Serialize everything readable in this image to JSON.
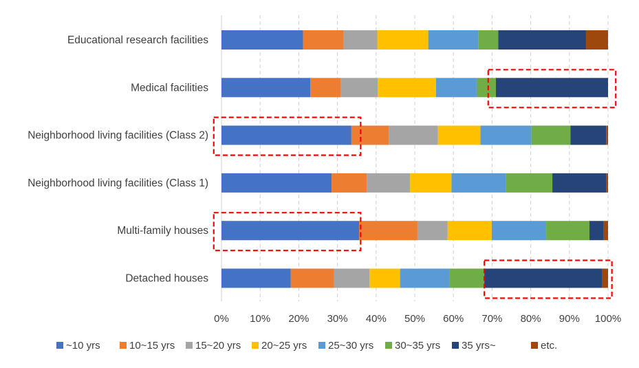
{
  "chart_data": {
    "type": "bar",
    "orientation": "horizontal",
    "stacked": "percent",
    "categories": [
      "Educational research facilities",
      "Medical facilities",
      "Neighborhood living facilities (Class 2)",
      "Neighborhood living facilities (Class 1)",
      "Multi-family houses",
      "Detached houses"
    ],
    "series": [
      {
        "name": "~10 yrs",
        "color": "#4472C4",
        "values": [
          21.1,
          23.0,
          33.6,
          28.5,
          35.6,
          17.9
        ]
      },
      {
        "name": "10~15 yrs",
        "color": "#ED7D31",
        "values": [
          10.5,
          7.9,
          9.7,
          9.1,
          15.1,
          11.2
        ]
      },
      {
        "name": "15~20 yrs",
        "color": "#A5A5A5",
        "values": [
          8.7,
          9.5,
          12.7,
          11.2,
          7.8,
          9.2
        ]
      },
      {
        "name": "20~25 yrs",
        "color": "#FFC000",
        "values": [
          13.2,
          15.1,
          11.0,
          10.7,
          11.4,
          7.9
        ]
      },
      {
        "name": "25~30 yrs",
        "color": "#5B9BD5",
        "values": [
          13.0,
          10.5,
          13.2,
          14.1,
          14.1,
          12.8
        ]
      },
      {
        "name": "30~35 yrs",
        "color": "#70AD47",
        "values": [
          5.1,
          5.0,
          10.1,
          12.0,
          11.2,
          9.0
        ]
      },
      {
        "name": "35 yrs~",
        "color": "#264478",
        "values": [
          22.7,
          29.0,
          9.2,
          14.0,
          3.7,
          30.4
        ]
      },
      {
        "name": "etc.",
        "color": "#9E480E",
        "values": [
          5.7,
          0.0,
          0.5,
          0.4,
          1.1,
          1.6
        ]
      }
    ],
    "x_ticks": [
      "0%",
      "10%",
      "20%",
      "30%",
      "40%",
      "50%",
      "60%",
      "70%",
      "80%",
      "90%",
      "100%"
    ],
    "xlim": [
      0,
      100
    ],
    "grid": "vertical dashed",
    "legend_position": "bottom",
    "highlights": [
      {
        "category": "Medical facilities",
        "from": 69,
        "to": 102,
        "color": "#FF0000"
      },
      {
        "category": "Neighborhood living facilities (Class 2)",
        "from": -2,
        "to": 36,
        "color": "#FF0000"
      },
      {
        "category": "Multi-family houses",
        "from": -2,
        "to": 36,
        "color": "#FF0000"
      },
      {
        "category": "Detached houses",
        "from": 68,
        "to": 101,
        "color": "#FF0000"
      }
    ]
  }
}
